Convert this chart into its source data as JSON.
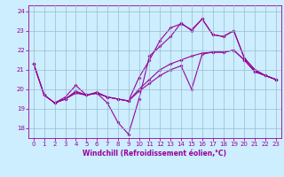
{
  "xlabel": "Windchill (Refroidissement éolien,°C)",
  "bg_color": "#cceeff",
  "line_color": "#990099",
  "grid_color": "#99bbcc",
  "xlim": [
    -0.5,
    23.5
  ],
  "ylim": [
    17.5,
    24.3
  ],
  "yticks": [
    18,
    19,
    20,
    21,
    22,
    23,
    24
  ],
  "xticks": [
    0,
    1,
    2,
    3,
    4,
    5,
    6,
    7,
    8,
    9,
    10,
    11,
    12,
    13,
    14,
    15,
    16,
    17,
    18,
    19,
    20,
    21,
    22,
    23
  ],
  "series": [
    [
      [
        0,
        21.3
      ],
      [
        1,
        19.7
      ],
      [
        2,
        19.3
      ],
      [
        3,
        19.6
      ],
      [
        4,
        20.2
      ],
      [
        5,
        19.7
      ],
      [
        6,
        19.8
      ],
      [
        7,
        19.3
      ],
      [
        8,
        18.3
      ],
      [
        9,
        17.7
      ],
      [
        10,
        19.5
      ],
      [
        11,
        21.7
      ],
      [
        12,
        22.2
      ],
      [
        13,
        22.7
      ],
      [
        14,
        23.4
      ],
      [
        15,
        23.0
      ],
      [
        16,
        23.6
      ],
      [
        17,
        22.8
      ],
      [
        18,
        22.7
      ],
      [
        19,
        23.0
      ],
      [
        20,
        21.6
      ],
      [
        21,
        21.0
      ],
      [
        22,
        20.7
      ],
      [
        23,
        20.5
      ]
    ],
    [
      [
        0,
        21.3
      ],
      [
        1,
        19.7
      ],
      [
        2,
        19.3
      ],
      [
        3,
        19.5
      ],
      [
        4,
        19.9
      ],
      [
        5,
        19.7
      ],
      [
        6,
        19.85
      ],
      [
        7,
        19.6
      ],
      [
        8,
        19.5
      ],
      [
        9,
        19.4
      ],
      [
        10,
        20.0
      ],
      [
        11,
        20.5
      ],
      [
        12,
        21.0
      ],
      [
        13,
        21.3
      ],
      [
        14,
        21.5
      ],
      [
        15,
        21.7
      ],
      [
        16,
        21.85
      ],
      [
        17,
        21.9
      ],
      [
        18,
        21.9
      ],
      [
        19,
        22.0
      ],
      [
        20,
        21.5
      ],
      [
        21,
        20.9
      ],
      [
        22,
        20.7
      ],
      [
        23,
        20.5
      ]
    ],
    [
      [
        0,
        21.3
      ],
      [
        1,
        19.7
      ],
      [
        2,
        19.3
      ],
      [
        3,
        19.5
      ],
      [
        4,
        19.8
      ],
      [
        5,
        19.7
      ],
      [
        6,
        19.8
      ],
      [
        7,
        19.6
      ],
      [
        8,
        19.5
      ],
      [
        9,
        19.4
      ],
      [
        10,
        20.6
      ],
      [
        11,
        21.5
      ],
      [
        12,
        22.5
      ],
      [
        13,
        23.15
      ],
      [
        14,
        23.35
      ],
      [
        15,
        23.05
      ],
      [
        16,
        23.6
      ],
      [
        17,
        22.8
      ],
      [
        18,
        22.7
      ],
      [
        19,
        23.0
      ],
      [
        20,
        21.6
      ],
      [
        21,
        21.0
      ],
      [
        22,
        20.7
      ],
      [
        23,
        20.5
      ]
    ],
    [
      [
        2,
        19.3
      ],
      [
        3,
        19.5
      ],
      [
        4,
        19.85
      ],
      [
        5,
        19.7
      ],
      [
        6,
        19.8
      ],
      [
        7,
        19.6
      ],
      [
        8,
        19.5
      ],
      [
        9,
        19.4
      ],
      [
        10,
        19.9
      ],
      [
        11,
        20.3
      ],
      [
        12,
        20.7
      ],
      [
        13,
        21.0
      ],
      [
        14,
        21.2
      ],
      [
        15,
        20.0
      ],
      [
        16,
        21.8
      ],
      [
        17,
        21.9
      ],
      [
        18,
        21.9
      ],
      [
        19,
        22.0
      ],
      [
        20,
        21.5
      ],
      [
        21,
        20.9
      ],
      [
        22,
        20.7
      ],
      [
        23,
        20.5
      ]
    ]
  ],
  "marker": "D",
  "markersize": 2,
  "linewidth": 0.8,
  "tick_fontsize": 5,
  "xlabel_fontsize": 5.5
}
